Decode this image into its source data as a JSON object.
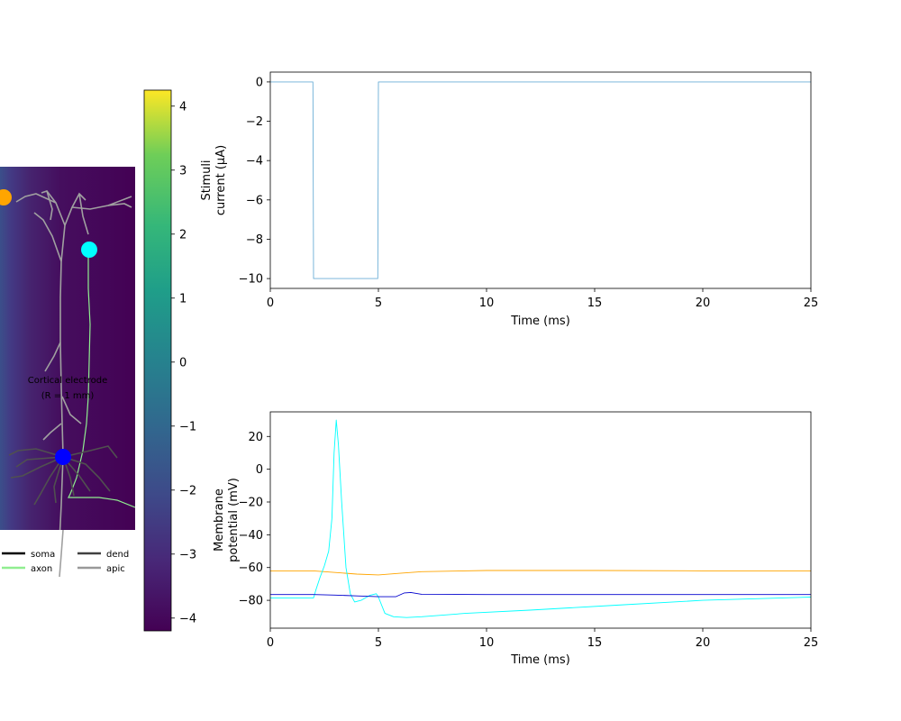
{
  "morphology_panel": {
    "electrode_label_line1": "Cortical electrode",
    "electrode_label_line2": "(R = 1 mm)",
    "legend": [
      {
        "label": "soma",
        "color": "#000000"
      },
      {
        "label": "axon",
        "color": "#90ee90"
      },
      {
        "label": "dend",
        "color": "#404040"
      },
      {
        "label": "apic",
        "color": "#999999"
      }
    ],
    "markers": [
      {
        "name": "orange-marker",
        "color": "#ffa500"
      },
      {
        "name": "cyan-marker",
        "color": "#00ffff"
      },
      {
        "name": "blue-marker",
        "color": "#0000ff"
      }
    ]
  },
  "colorbar": {
    "colormap": "viridis",
    "range": [
      -4.2,
      4.25
    ],
    "ticks": [
      "4",
      "3",
      "2",
      "1",
      "0",
      "−1",
      "−2",
      "−3",
      "−4"
    ]
  },
  "chart_data": [
    {
      "type": "line",
      "name": "stimulus",
      "xlabel": "Time (ms)",
      "ylabel_line1": "Stimuli",
      "ylabel_line2": "current (μA)",
      "xlim": [
        0,
        25
      ],
      "ylim": [
        -10.5,
        0.5
      ],
      "xticks": [
        0,
        5,
        10,
        15,
        20,
        25
      ],
      "yticks": [
        0,
        -2,
        -4,
        -6,
        -8,
        -10
      ],
      "series": [
        {
          "color": "#6baed6",
          "x": [
            0,
            1.97,
            2.0,
            4.97,
            5.0,
            25
          ],
          "y": [
            0,
            0,
            -10,
            -10,
            0,
            0
          ]
        }
      ]
    },
    {
      "type": "line",
      "name": "membrane",
      "xlabel": "Time (ms)",
      "ylabel_line1": "Membrane",
      "ylabel_line2": "potential (mV)",
      "xlim": [
        0,
        25
      ],
      "ylim": [
        -97,
        35
      ],
      "xticks": [
        0,
        5,
        10,
        15,
        20,
        25
      ],
      "yticks": [
        20,
        0,
        -20,
        -40,
        -60,
        -80
      ],
      "series": [
        {
          "color": "#ffa500",
          "x": [
            0,
            2,
            3,
            4,
            5,
            6,
            7,
            10,
            15,
            20,
            25
          ],
          "y": [
            -62,
            -62,
            -63,
            -64,
            -64.5,
            -63.5,
            -62.5,
            -61.8,
            -61.8,
            -62,
            -62
          ]
        },
        {
          "color": "#00ffff",
          "x": [
            0,
            2.0,
            2.1,
            2.3,
            2.5,
            2.7,
            2.85,
            2.95,
            3.05,
            3.15,
            3.3,
            3.5,
            3.7,
            3.9,
            4.2,
            4.6,
            4.9,
            5.0,
            5.3,
            5.7,
            6.3,
            7,
            9,
            12,
            16,
            20,
            25
          ],
          "y": [
            -78.5,
            -78.5,
            -74,
            -66,
            -59,
            -50,
            -30,
            10,
            30,
            15,
            -20,
            -60,
            -76,
            -81,
            -80,
            -77,
            -76,
            -78,
            -88,
            -90,
            -90.5,
            -90,
            -88,
            -86,
            -83,
            -80,
            -78
          ]
        },
        {
          "color": "#0000cd",
          "x": [
            0,
            2,
            3,
            4,
            5,
            5.8,
            6.2,
            6.5,
            7,
            10,
            15,
            20,
            25
          ],
          "y": [
            -76.5,
            -76.5,
            -76.8,
            -77.3,
            -77.8,
            -77.8,
            -75.5,
            -75.2,
            -76.3,
            -76.5,
            -76.5,
            -76.5,
            -76.5
          ]
        }
      ]
    }
  ]
}
